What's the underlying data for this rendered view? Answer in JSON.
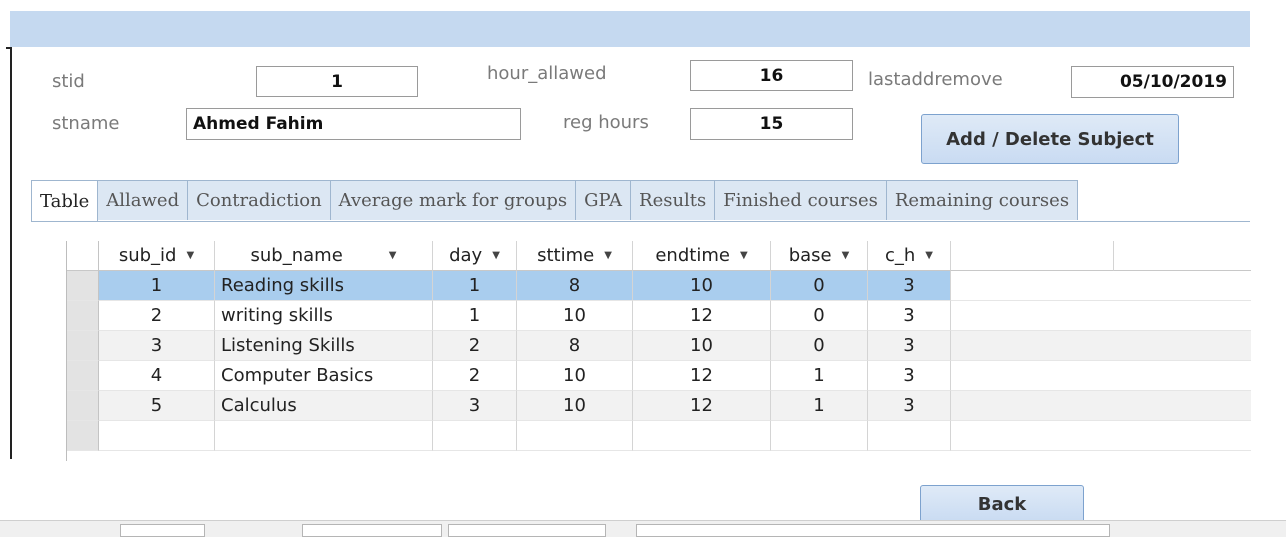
{
  "form": {
    "stid_label": "stid",
    "stid_value": "1",
    "stname_label": "stname",
    "stname_value": "Ahmed Fahim",
    "hour_allawed_label": "hour_allawed",
    "hour_allawed_value": "16",
    "reg_hours_label": "reg hours",
    "reg_hours_value": "15",
    "lastaddremove_label": "lastaddremove",
    "lastaddremove_value": "05/10/2019",
    "add_delete_button": "Add / Delete Subject",
    "back_button": "Back"
  },
  "tabs": [
    "Table",
    "Allawed",
    "Contradiction",
    "Average mark for groups",
    "GPA",
    "Results",
    "Finished courses",
    "Remaining courses"
  ],
  "table": {
    "columns": [
      "sub_id",
      "sub_name",
      "day",
      "sttime",
      "endtime",
      "base",
      "c_h"
    ],
    "rows": [
      [
        "1",
        "Reading skills",
        "1",
        "8",
        "10",
        "0",
        "3"
      ],
      [
        "2",
        "writing skills",
        "1",
        "10",
        "12",
        "0",
        "3"
      ],
      [
        "3",
        "Listening Skills",
        "2",
        "8",
        "10",
        "0",
        "3"
      ],
      [
        "4",
        "Computer Basics",
        "2",
        "10",
        "12",
        "1",
        "3"
      ],
      [
        "5",
        "Calculus",
        "3",
        "10",
        "12",
        "1",
        "3"
      ]
    ]
  }
}
